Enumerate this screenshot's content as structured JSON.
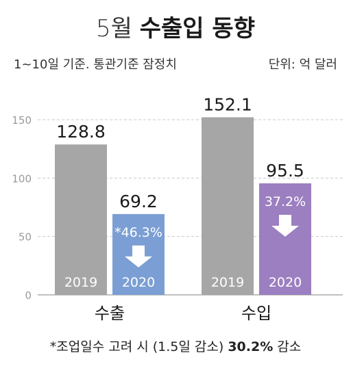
{
  "header": {
    "title_light": "5월",
    "title_bold": "수출입 동향",
    "subtitle": "1~10일 기준. 통관기준 잠정치",
    "unit": "단위: 억 달러"
  },
  "footnote": {
    "prefix": "*조업일수 고려 시 (1.5일 감소)",
    "highlight": "30.2%",
    "suffix": "감소"
  },
  "colors": {
    "bar_2019": "#a6a6a6",
    "export_2020": "#7b9fd4",
    "import_2020": "#9b7fc0",
    "grid": "#c9c9c9",
    "tick": "#9a9a9a"
  },
  "chart_data": {
    "type": "bar",
    "categories": [
      "수출",
      "수입"
    ],
    "series": [
      {
        "name": "2019",
        "values": [
          128.8,
          152.1
        ]
      },
      {
        "name": "2020",
        "values": [
          69.2,
          95.5
        ]
      }
    ],
    "value_labels": [
      [
        "128.8",
        "69.2"
      ],
      [
        "152.1",
        "95.5"
      ]
    ],
    "change_labels": [
      "*46.3%",
      "37.2%"
    ],
    "yticks": [
      0,
      50,
      100,
      150
    ],
    "ylim": [
      0,
      150
    ],
    "grid": true
  }
}
